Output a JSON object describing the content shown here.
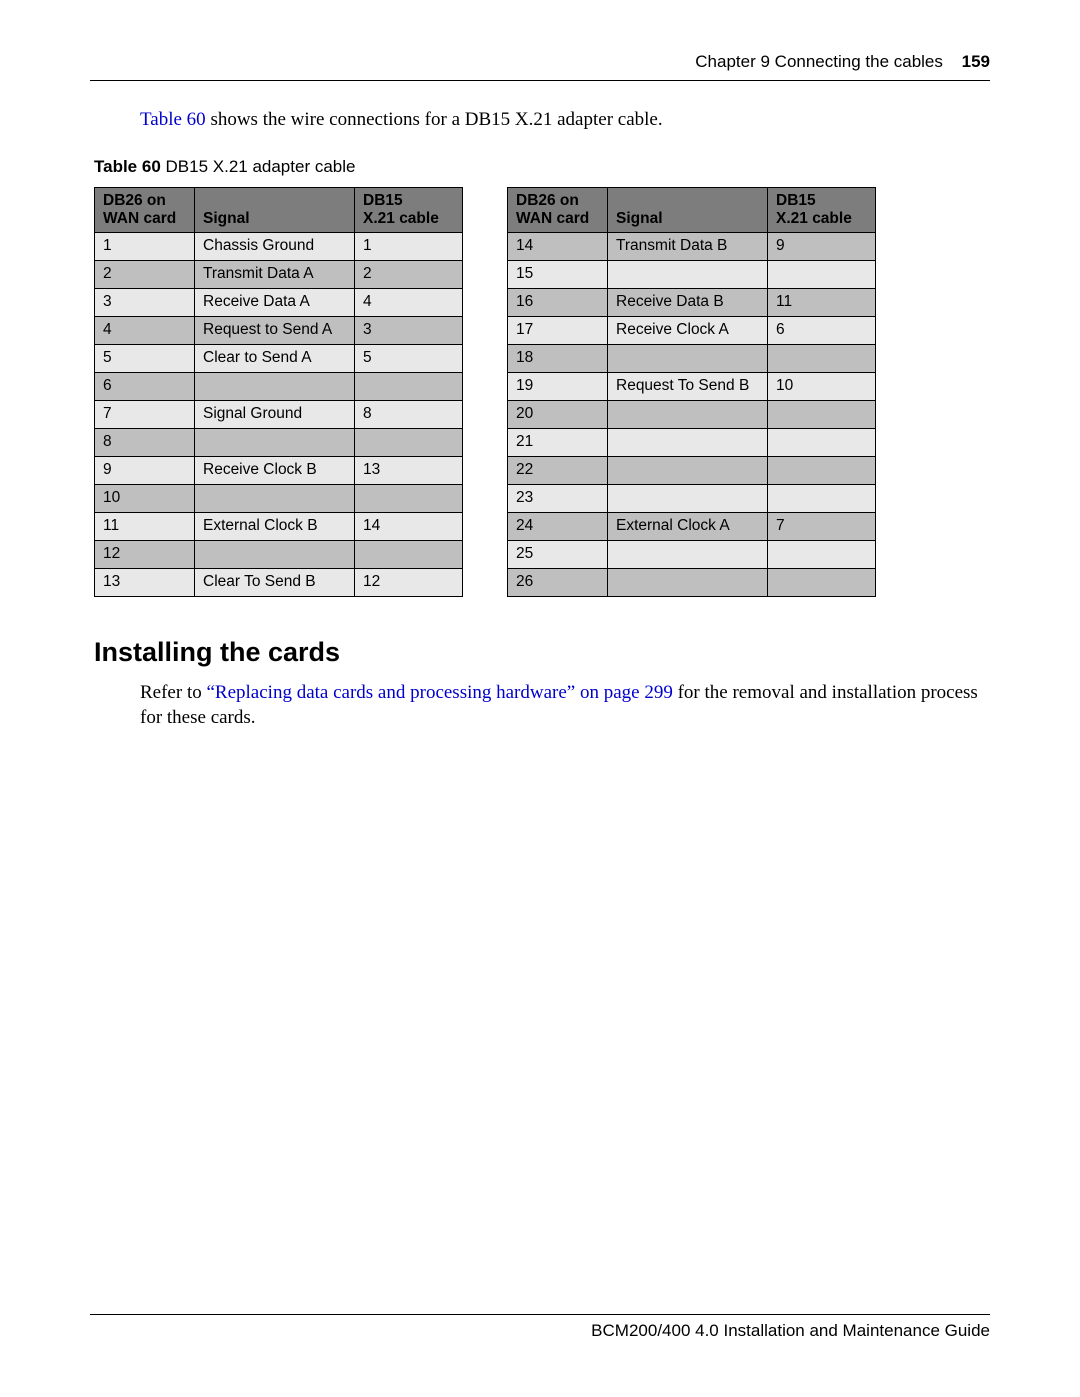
{
  "header": {
    "chapter_label": "Chapter 9  Connecting the cables",
    "page_number": "159"
  },
  "intro": {
    "link_text": "Table 60",
    "rest_text": " shows the wire connections for a DB15 X.21 adapter cable."
  },
  "table_caption": {
    "bold": "Table 60",
    "rest": "   DB15 X.21 adapter cable"
  },
  "columns": {
    "col1_line1": "DB26 on",
    "col1_line2": "WAN card",
    "col2": "Signal",
    "col3_line1": "DB15",
    "col3_line2": "X.21 cable"
  },
  "left_rows": [
    {
      "c1": "1",
      "c2": "Chassis Ground",
      "c3": "1",
      "shaded": false
    },
    {
      "c1": "2",
      "c2": "Transmit Data A",
      "c3": "2",
      "shaded": true
    },
    {
      "c1": "3",
      "c2": "Receive Data A",
      "c3": "4",
      "shaded": false
    },
    {
      "c1": "4",
      "c2": "Request to Send A",
      "c3": "3",
      "shaded": true
    },
    {
      "c1": "5",
      "c2": "Clear to Send A",
      "c3": "5",
      "shaded": false
    },
    {
      "c1": "6",
      "c2": "",
      "c3": "",
      "shaded": true
    },
    {
      "c1": "7",
      "c2": "Signal Ground",
      "c3": "8",
      "shaded": false
    },
    {
      "c1": "8",
      "c2": "",
      "c3": "",
      "shaded": true
    },
    {
      "c1": "9",
      "c2": "Receive Clock B",
      "c3": "13",
      "shaded": false
    },
    {
      "c1": "10",
      "c2": "",
      "c3": "",
      "shaded": true
    },
    {
      "c1": "11",
      "c2": "External Clock B",
      "c3": "14",
      "shaded": false
    },
    {
      "c1": "12",
      "c2": "",
      "c3": "",
      "shaded": true
    },
    {
      "c1": "13",
      "c2": "Clear To Send B",
      "c3": "12",
      "shaded": false
    }
  ],
  "right_rows": [
    {
      "c1": "14",
      "c2": "Transmit Data B",
      "c3": "9",
      "shaded": true
    },
    {
      "c1": "15",
      "c2": "",
      "c3": "",
      "shaded": false
    },
    {
      "c1": "16",
      "c2": "Receive Data B",
      "c3": "11",
      "shaded": true
    },
    {
      "c1": "17",
      "c2": "Receive Clock A",
      "c3": "6",
      "shaded": false
    },
    {
      "c1": "18",
      "c2": "",
      "c3": "",
      "shaded": true
    },
    {
      "c1": "19",
      "c2": "Request To Send B",
      "c3": "10",
      "shaded": false
    },
    {
      "c1": "20",
      "c2": "",
      "c3": "",
      "shaded": true
    },
    {
      "c1": "21",
      "c2": "",
      "c3": "",
      "shaded": false
    },
    {
      "c1": "22",
      "c2": "",
      "c3": "",
      "shaded": true
    },
    {
      "c1": "23",
      "c2": "",
      "c3": "",
      "shaded": false
    },
    {
      "c1": "24",
      "c2": "External Clock A",
      "c3": "7",
      "shaded": true
    },
    {
      "c1": "25",
      "c2": "",
      "c3": "",
      "shaded": false
    },
    {
      "c1": "26",
      "c2": "",
      "c3": "",
      "shaded": true
    }
  ],
  "section_heading": "Installing the cards",
  "para2": {
    "pre": "Refer to ",
    "link": "“Replacing data cards and processing hardware” on page 299",
    "post": " for the removal and installation process for these cards."
  },
  "footer_text": "BCM200/400 4.0 Installation and Maintenance Guide",
  "colors": {
    "link": "#0000cc",
    "header_bg": "#7d7d7d",
    "row_shaded": "#bfbfbf",
    "row_plain": "#e8e8e8"
  }
}
